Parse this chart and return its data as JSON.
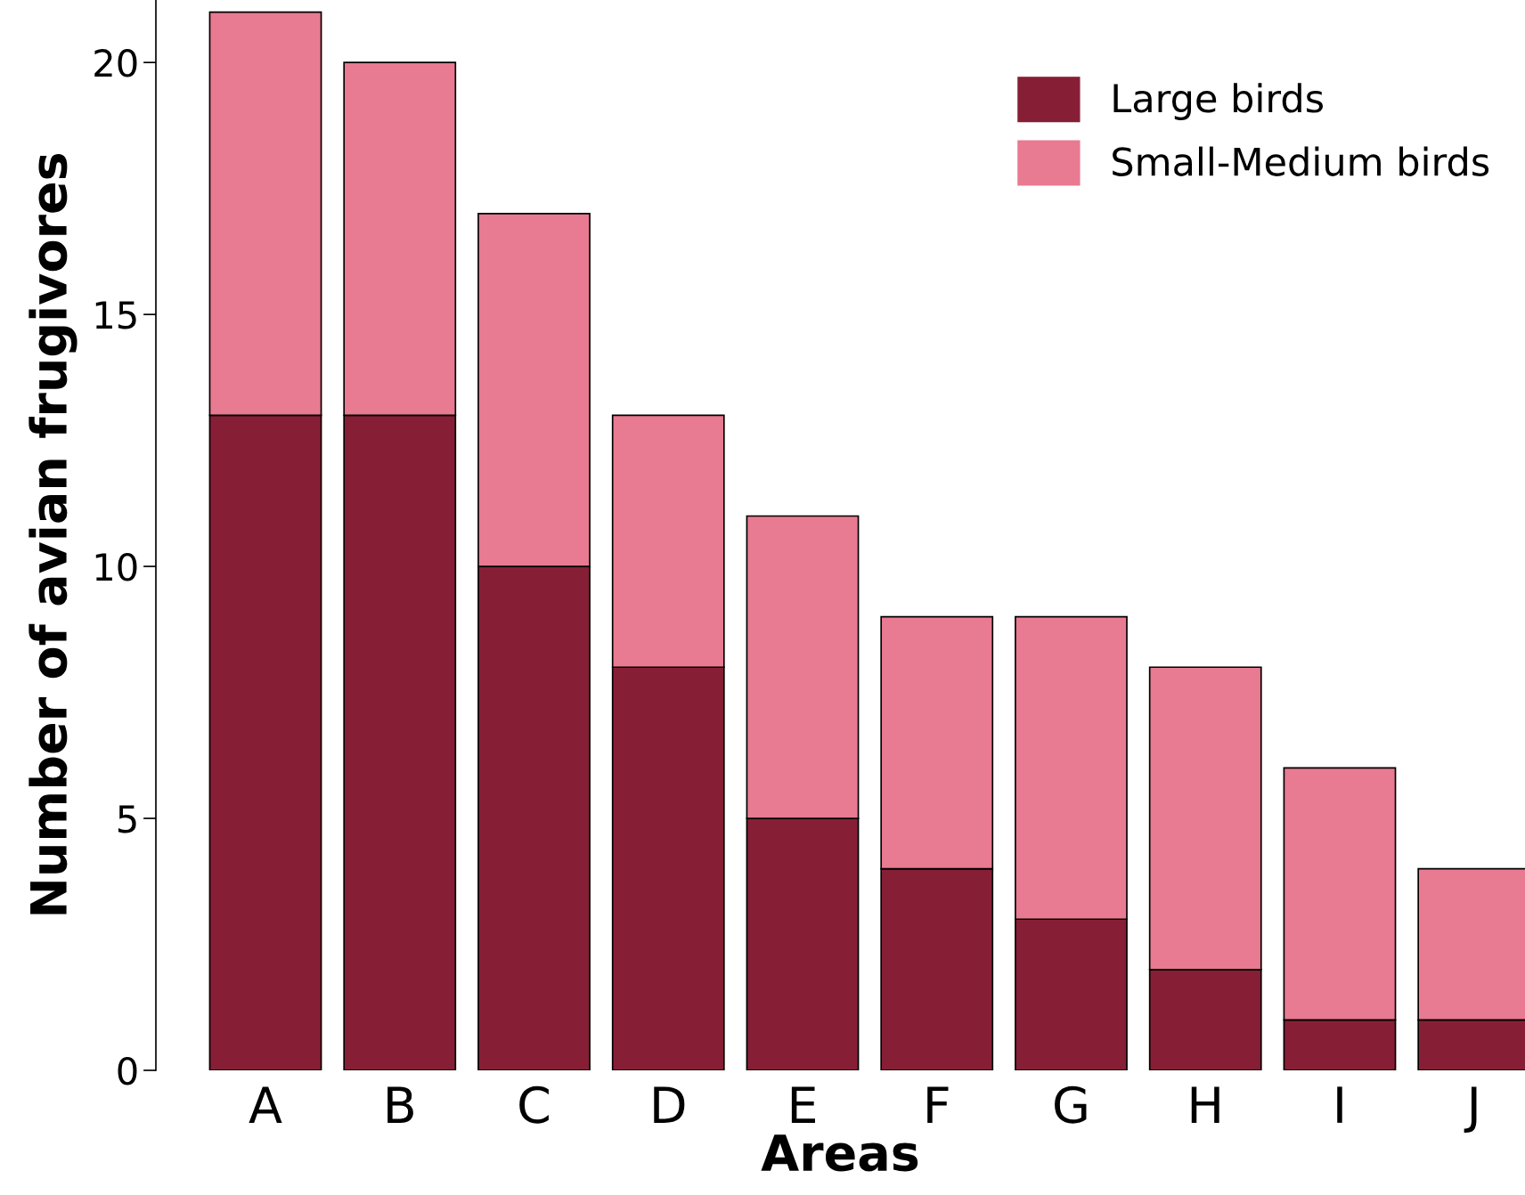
{
  "chart_data": {
    "type": "bar",
    "stacked": true,
    "xlabel": "Areas",
    "ylabel": "Number of avian frugivores",
    "categories": [
      "A",
      "B",
      "C",
      "D",
      "E",
      "F",
      "G",
      "H",
      "I",
      "J"
    ],
    "series": [
      {
        "name": "Large birds",
        "color": "#861f35",
        "values": [
          13,
          13,
          10,
          8,
          5,
          4,
          3,
          2,
          1,
          1
        ]
      },
      {
        "name": "Small-Medium birds",
        "color": "#e87a91",
        "values": [
          8,
          7,
          7,
          5,
          6,
          5,
          6,
          6,
          5,
          3
        ]
      }
    ],
    "ylim": [
      0,
      21.24
    ],
    "yticks": [
      0,
      5,
      10,
      15,
      20
    ],
    "grid": false,
    "legend": "top right"
  }
}
